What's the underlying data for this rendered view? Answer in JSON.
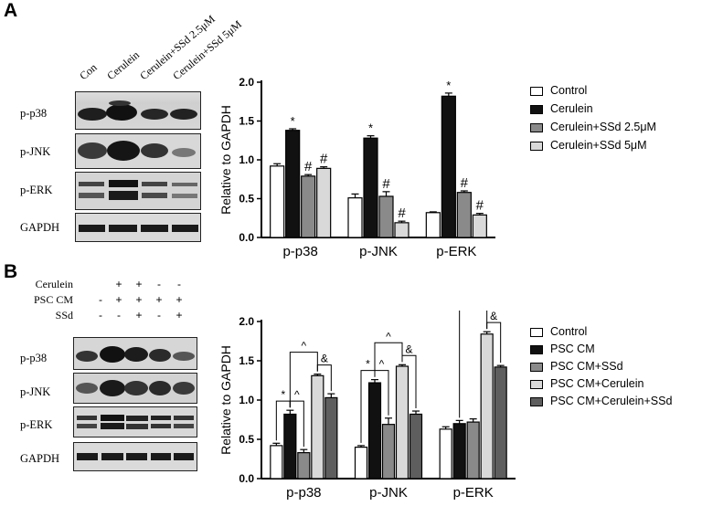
{
  "panelA": {
    "letter": "A",
    "lanes": [
      "Con",
      "Cerulein",
      "Cerulein+SSd 2.5μM",
      "Cerulein+SSd 5μM"
    ],
    "blots": [
      "p-p38",
      "p-JNK",
      "p-ERK",
      "GAPDH"
    ]
  },
  "panelB": {
    "letter": "B",
    "conditions": [
      {
        "label": "Cerulein",
        "signs": [
          "",
          "+",
          "+",
          "-",
          "-"
        ]
      },
      {
        "label": "PSC CM",
        "signs": [
          "-",
          "+",
          "+",
          "+",
          "+"
        ]
      },
      {
        "label": "SSd",
        "signs": [
          "-",
          "-",
          "+",
          "-",
          "+"
        ]
      }
    ],
    "blots": [
      "p-p38",
      "p-JNK",
      "p-ERK",
      "GAPDH"
    ]
  },
  "chart_data": [
    {
      "type": "bar",
      "ylabel": "Relative to GAPDH",
      "ylim": [
        0,
        2.0
      ],
      "yticks": [
        "0.0",
        "0.5",
        "1.0",
        "1.5",
        "2.0"
      ],
      "categories": [
        "p-p38",
        "p-JNK",
        "p-ERK"
      ],
      "series": [
        {
          "name": "Control",
          "values": [
            0.92,
            0.51,
            0.32
          ],
          "errors": [
            0.03,
            0.05,
            0.01
          ],
          "marks": [
            "",
            "",
            ""
          ],
          "color": "#ffffff"
        },
        {
          "name": "Cerulein",
          "values": [
            1.38,
            1.28,
            1.82
          ],
          "errors": [
            0.02,
            0.03,
            0.04
          ],
          "marks": [
            "*",
            "*",
            "*"
          ],
          "color": "#111111"
        },
        {
          "name": "Cerulein+SSd 2.5μM",
          "values": [
            0.79,
            0.53,
            0.58
          ],
          "errors": [
            0.02,
            0.06,
            0.02
          ],
          "marks": [
            "#",
            "#",
            "#"
          ],
          "color": "#8a8a8a"
        },
        {
          "name": "Cerulein+SSd 5μM",
          "values": [
            0.89,
            0.19,
            0.29
          ],
          "errors": [
            0.02,
            0.02,
            0.02
          ],
          "marks": [
            "#",
            "#",
            "#"
          ],
          "color": "#d9d9d9"
        }
      ],
      "legend": "right"
    },
    {
      "type": "bar",
      "ylabel": "Relative to GAPDH",
      "ylim": [
        0,
        2.0
      ],
      "yticks": [
        "0.0",
        "0.5",
        "1.0",
        "1.5",
        "2.0"
      ],
      "categories": [
        "p-p38",
        "p-JNK",
        "p-ERK"
      ],
      "series": [
        {
          "name": "Control",
          "values": [
            0.42,
            0.4,
            0.63
          ],
          "errors": [
            0.03,
            0.02,
            0.03
          ],
          "color": "#ffffff"
        },
        {
          "name": "PSC CM",
          "values": [
            0.82,
            1.22,
            0.7
          ],
          "errors": [
            0.05,
            0.04,
            0.04
          ],
          "color": "#111111"
        },
        {
          "name": "PSC CM+SSd",
          "values": [
            0.33,
            0.69,
            0.72
          ],
          "errors": [
            0.04,
            0.08,
            0.04
          ],
          "color": "#8a8a8a"
        },
        {
          "name": "PSC CM+Cerulein",
          "values": [
            1.31,
            1.43,
            1.84
          ],
          "errors": [
            0.02,
            0.02,
            0.03
          ],
          "color": "#d9d9d9"
        },
        {
          "name": "PSC CM+Cerulein+SSd",
          "values": [
            1.03,
            0.82,
            1.42
          ],
          "errors": [
            0.05,
            0.04,
            0.02
          ],
          "color": "#5e5e5e"
        }
      ],
      "brackets": [
        {
          "group": 0,
          "from": 0,
          "to": 1,
          "mark": "*"
        },
        {
          "group": 0,
          "from": 1,
          "to": 2,
          "mark": "^"
        },
        {
          "group": 0,
          "from": 1,
          "to": 3,
          "mark": "^"
        },
        {
          "group": 0,
          "from": 3,
          "to": 4,
          "mark": "&"
        },
        {
          "group": 1,
          "from": 0,
          "to": 1,
          "mark": "*"
        },
        {
          "group": 1,
          "from": 1,
          "to": 2,
          "mark": "^"
        },
        {
          "group": 1,
          "from": 1,
          "to": 3,
          "mark": "^"
        },
        {
          "group": 1,
          "from": 3,
          "to": 4,
          "mark": "&"
        },
        {
          "group": 2,
          "from": 1,
          "to": 3,
          "mark": "^"
        },
        {
          "group": 2,
          "from": 3,
          "to": 4,
          "mark": "&"
        }
      ],
      "legend": "right"
    }
  ]
}
